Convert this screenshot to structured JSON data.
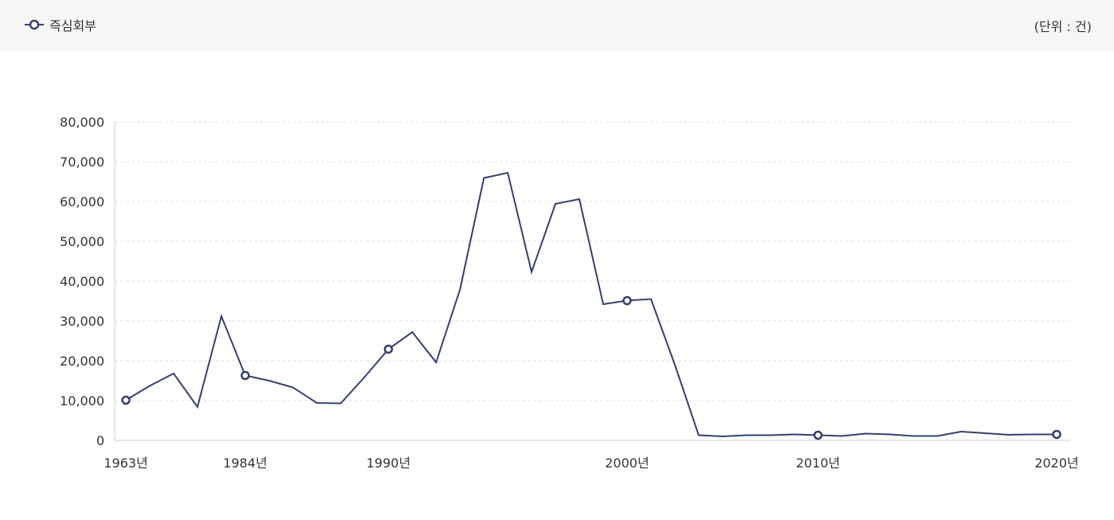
{
  "header": {
    "legend_label": "즉심회부",
    "unit_label": "(단위 : 건)"
  },
  "colors": {
    "line": "#35406b",
    "grid": "#e0e0e0",
    "axis": "#cccccc",
    "header_bg": "#f6f6f6"
  },
  "chart_data": {
    "type": "line",
    "ylim": [
      0,
      80000
    ],
    "y_ticks": [
      0,
      10000,
      20000,
      30000,
      40000,
      50000,
      60000,
      70000,
      80000
    ],
    "y_tick_labels": [
      "0",
      "10,000",
      "20,000",
      "30,000",
      "40,000",
      "50,000",
      "60,000",
      "70,000",
      "80,000"
    ],
    "x_tick_labels": [
      {
        "index": 0,
        "label": "1963년"
      },
      {
        "index": 5,
        "label": "1984년"
      },
      {
        "index": 11,
        "label": "1990년"
      },
      {
        "index": 21,
        "label": "2000년"
      },
      {
        "index": 29,
        "label": "2010년"
      },
      {
        "index": 39,
        "label": "2020년"
      }
    ],
    "grid": true,
    "legend": "top-left",
    "series": [
      {
        "name": "즉심회부",
        "values": [
          10100,
          13700,
          16800,
          8400,
          31200,
          16300,
          15000,
          13300,
          9400,
          9300,
          15900,
          22900,
          27200,
          19600,
          37900,
          65900,
          67200,
          42300,
          59400,
          60600,
          34200,
          35100,
          35500,
          19000,
          1300,
          1000,
          1300,
          1300,
          1500,
          1300,
          1100,
          1700,
          1500,
          1100,
          1100,
          2200,
          1800,
          1400,
          1500,
          1500
        ],
        "marker_indices": [
          0,
          5,
          11,
          21,
          29,
          39
        ]
      }
    ]
  }
}
